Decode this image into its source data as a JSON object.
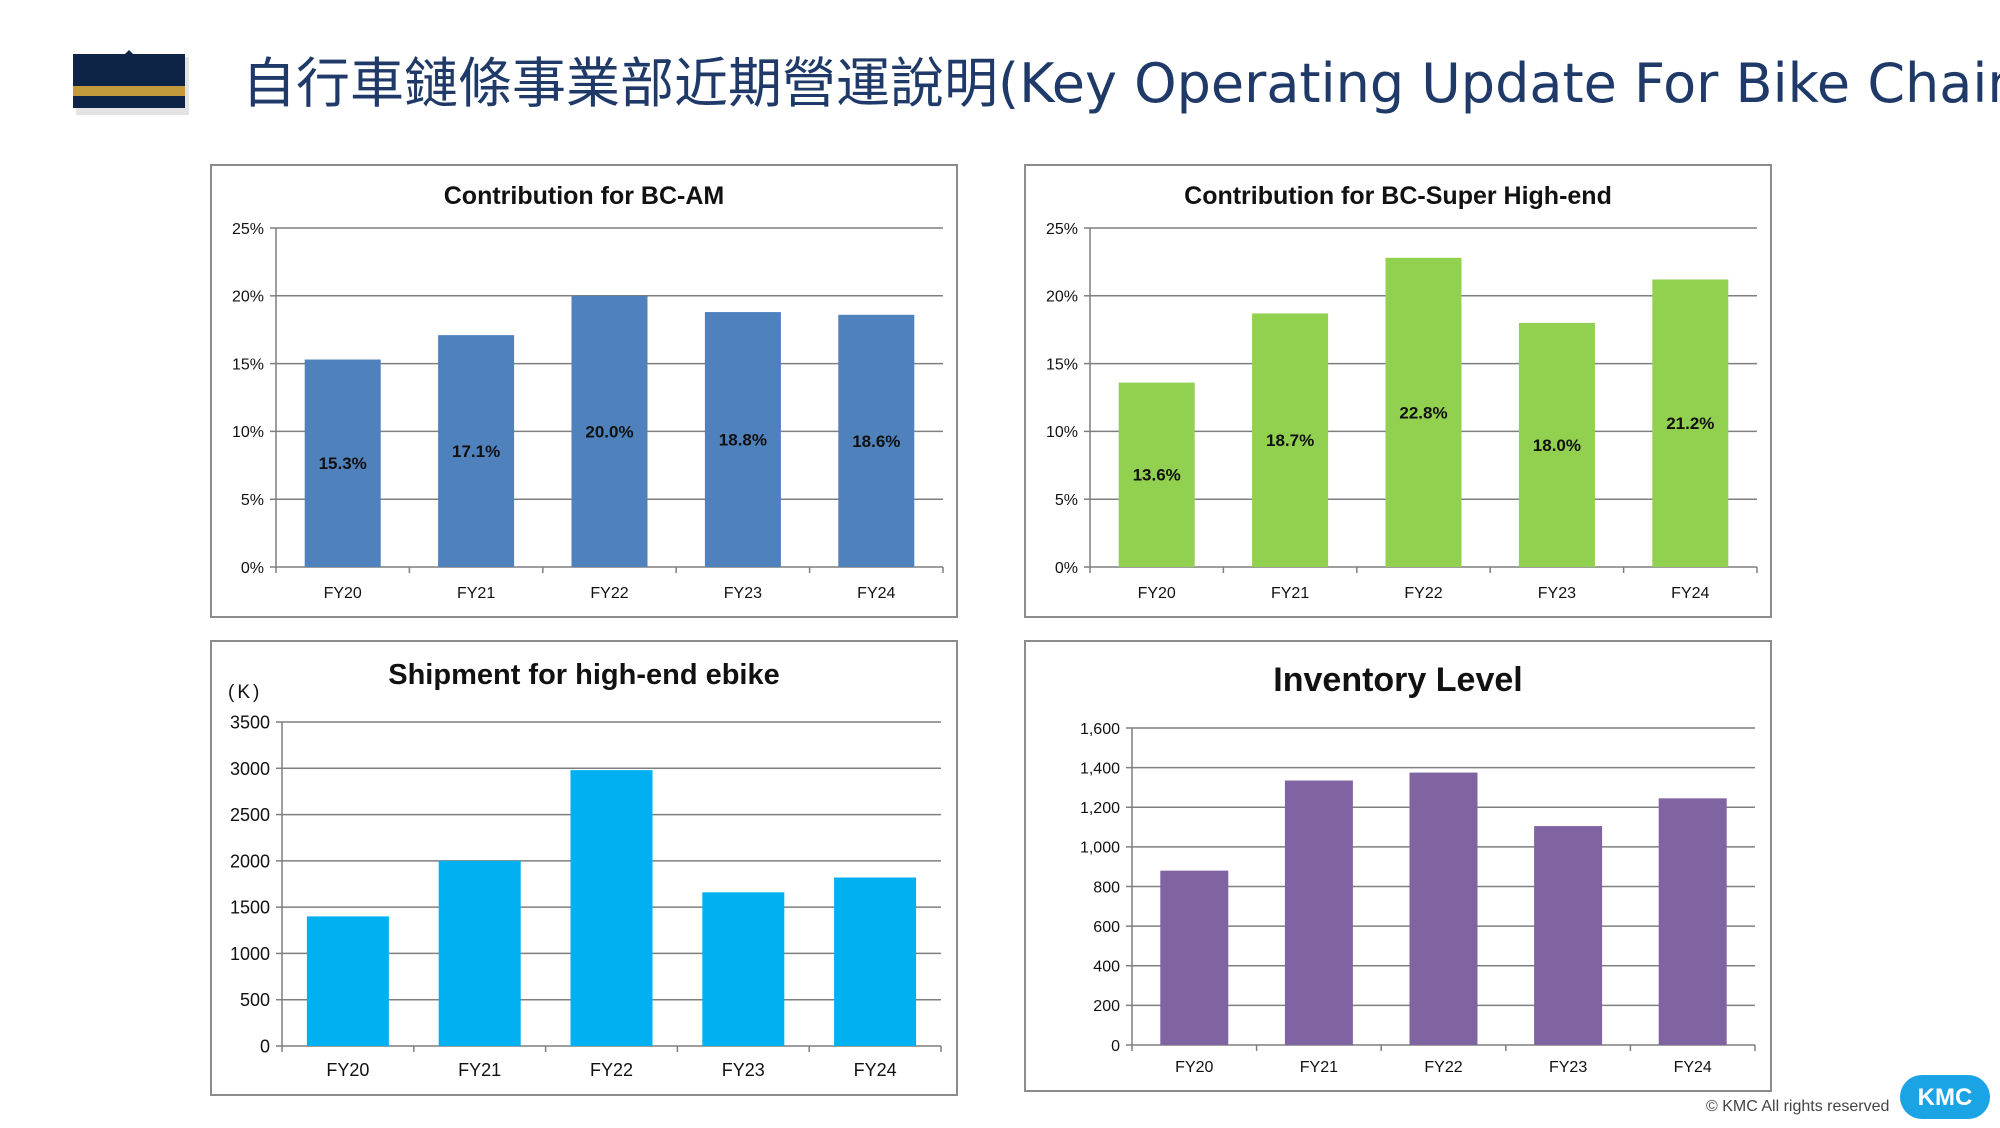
{
  "page": {
    "title": "自行車鏈條事業部近期營運說明(Key Operating Update For Bike Chain)",
    "copyright": "© KMC All rights reserved",
    "logo_text": "KMC"
  },
  "colors": {
    "title": "#1f3a68",
    "navy": "#0e2447",
    "gold": "#c29a3b",
    "gridline": "#7f7f7f",
    "kmc_blue": "#1aa4e6"
  },
  "chart_data": [
    {
      "type": "bar",
      "title": "Contribution for BC-AM",
      "categories": [
        "FY20",
        "FY21",
        "FY22",
        "FY23",
        "FY24"
      ],
      "values": [
        15.3,
        17.1,
        20.0,
        18.8,
        18.6
      ],
      "data_labels": [
        "15.3%",
        "17.1%",
        "20.0%",
        "18.8%",
        "18.6%"
      ],
      "color": "#4f81bd",
      "ylim": [
        0,
        25
      ],
      "ticks": [
        0,
        5,
        10,
        15,
        20,
        25
      ],
      "tick_labels": [
        "0%",
        "5%",
        "10%",
        "15%",
        "20%",
        "25%"
      ],
      "grid": true,
      "xlabel": "",
      "ylabel": ""
    },
    {
      "type": "bar",
      "title": "Contribution for BC-Super High-end",
      "categories": [
        "FY20",
        "FY21",
        "FY22",
        "FY23",
        "FY24"
      ],
      "values": [
        13.6,
        18.7,
        22.8,
        18.0,
        21.2
      ],
      "data_labels": [
        "13.6%",
        "18.7%",
        "22.8%",
        "18.0%",
        "21.2%"
      ],
      "color": "#92d050",
      "ylim": [
        0,
        25
      ],
      "ticks": [
        0,
        5,
        10,
        15,
        20,
        25
      ],
      "tick_labels": [
        "0%",
        "5%",
        "10%",
        "15%",
        "20%",
        "25%"
      ],
      "grid": true,
      "xlabel": "",
      "ylabel": ""
    },
    {
      "type": "bar",
      "title": "Shipment for high-end ebike",
      "unit": "(K)",
      "categories": [
        "FY20",
        "FY21",
        "FY22",
        "FY23",
        "FY24"
      ],
      "values": [
        1400,
        2000,
        2980,
        1660,
        1820
      ],
      "color": "#00b0f0",
      "ylim": [
        0,
        3500
      ],
      "ticks": [
        0,
        500,
        1000,
        1500,
        2000,
        2500,
        3000,
        3500
      ],
      "tick_labels": [
        "0",
        "500",
        "1000",
        "1500",
        "2000",
        "2500",
        "3000",
        "3500"
      ],
      "grid": true,
      "xlabel": "",
      "ylabel": "(K)"
    },
    {
      "type": "bar",
      "title": "Inventory Level",
      "categories": [
        "FY20",
        "FY21",
        "FY22",
        "FY23",
        "FY24"
      ],
      "values": [
        880,
        1335,
        1375,
        1105,
        1245
      ],
      "color": "#8064a2",
      "ylim": [
        0,
        1600
      ],
      "ticks": [
        0,
        200,
        400,
        600,
        800,
        1000,
        1200,
        1400,
        1600
      ],
      "tick_labels": [
        "0",
        "200",
        "400",
        "600",
        "800",
        "1,000",
        "1,200",
        "1,400",
        "1,600"
      ],
      "grid": true,
      "xlabel": "",
      "ylabel": ""
    }
  ]
}
